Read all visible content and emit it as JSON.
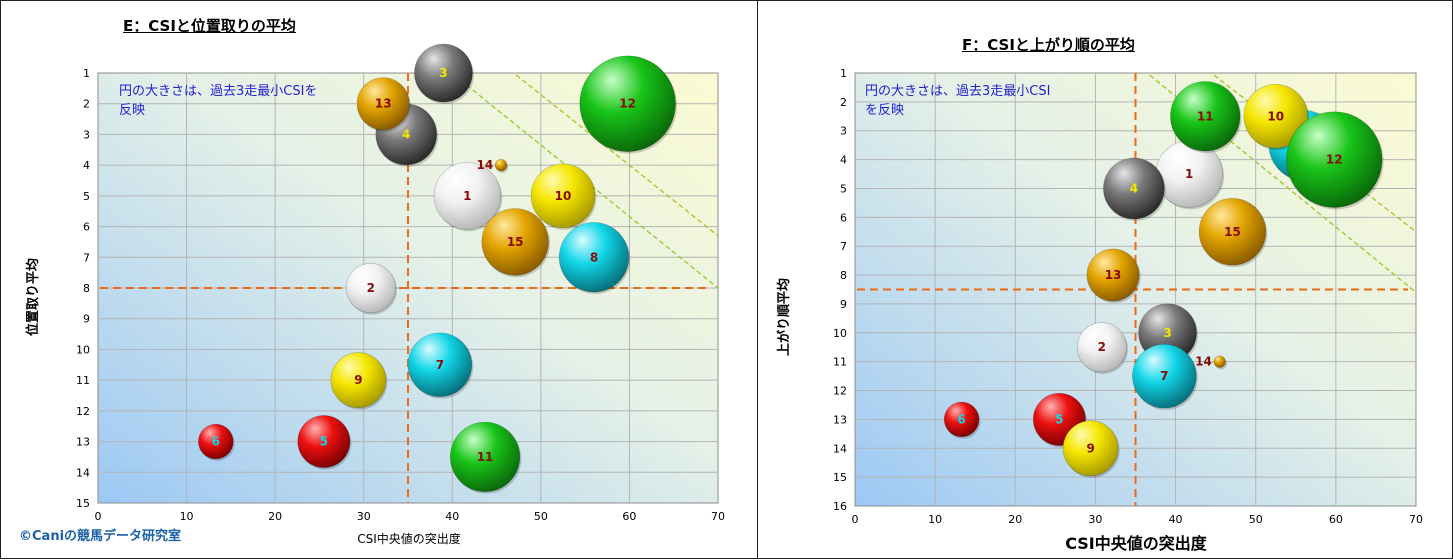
{
  "credit": "©Caniの競馬データ研究室",
  "colors": {
    "white": "#ffffff",
    "gray": "#6e6e6e",
    "yellow": "#f5e600",
    "gold": "#e3a400",
    "green": "#18c418",
    "cyan": "#12d6e8",
    "red": "#ee1010",
    "darkred": "#8a0a0a",
    "refline": "#ee6a16",
    "diagline": "#9ac828"
  },
  "chart_data": [
    {
      "type": "scatter",
      "title": "E：CSIと位置取りの平均",
      "xlabel": "CSI中央値の突出度",
      "ylabel": "位置取り平均",
      "annotation": "円の大きさは、過去3走最小CSIを反映",
      "xlim": [
        0,
        70
      ],
      "ylim": [
        1,
        15
      ],
      "y_inverted": true,
      "x_ticks": [
        0,
        10,
        20,
        30,
        40,
        50,
        60,
        70
      ],
      "y_ticks": [
        1,
        2,
        3,
        4,
        5,
        6,
        7,
        8,
        9,
        10,
        11,
        12,
        13,
        14,
        15
      ],
      "grid": true,
      "ref_lines": {
        "x": 35,
        "y": 8
      },
      "points": [
        {
          "label": "1",
          "x": 41.7,
          "y": 5.0,
          "size": 2.3,
          "color": "white",
          "label_color": "darkred"
        },
        {
          "label": "2",
          "x": 30.8,
          "y": 8.0,
          "size": 1.7,
          "color": "white",
          "label_color": "darkred"
        },
        {
          "label": "3",
          "x": 39.0,
          "y": 1.0,
          "size": 2.0,
          "color": "gray",
          "label_color": "yellow"
        },
        {
          "label": "4",
          "x": 34.8,
          "y": 3.0,
          "size": 2.1,
          "color": "gray",
          "label_color": "yellow"
        },
        {
          "label": "5",
          "x": 25.5,
          "y": 13.0,
          "size": 1.8,
          "color": "red",
          "label_color": "cyan"
        },
        {
          "label": "6",
          "x": 13.3,
          "y": 13.0,
          "size": 1.2,
          "color": "red",
          "label_color": "cyan"
        },
        {
          "label": "7",
          "x": 38.6,
          "y": 10.5,
          "size": 2.2,
          "color": "cyan",
          "label_color": "darkred"
        },
        {
          "label": "8",
          "x": 56.0,
          "y": 7.0,
          "size": 2.4,
          "color": "cyan",
          "label_color": "darkred"
        },
        {
          "label": "9",
          "x": 29.4,
          "y": 11.0,
          "size": 1.9,
          "color": "yellow",
          "label_color": "darkred"
        },
        {
          "label": "10",
          "x": 52.5,
          "y": 5.0,
          "size": 2.2,
          "color": "yellow",
          "label_color": "darkred"
        },
        {
          "label": "11",
          "x": 43.7,
          "y": 13.5,
          "size": 2.4,
          "color": "green",
          "label_color": "darkred"
        },
        {
          "label": "12",
          "x": 59.8,
          "y": 2.0,
          "size": 3.3,
          "color": "green",
          "label_color": "darkred"
        },
        {
          "label": "13",
          "x": 32.2,
          "y": 2.0,
          "size": 1.8,
          "color": "gold",
          "label_color": "darkred"
        },
        {
          "label": "14",
          "x": 45.5,
          "y": 4.0,
          "size": 0.4,
          "color": "gold",
          "label_color": "darkred"
        },
        {
          "label": "15",
          "x": 47.1,
          "y": 6.5,
          "size": 2.3,
          "color": "gold",
          "label_color": "darkred"
        }
      ]
    },
    {
      "type": "scatter",
      "title": "F：CSIと上がり順の平均",
      "xlabel": "CSI中央値の突出度",
      "ylabel": "上がり順平均",
      "annotation": "円の大きさは、過去3走最小CSIを反映",
      "xlim": [
        0,
        70
      ],
      "ylim": [
        1,
        16
      ],
      "y_inverted": true,
      "x_ticks": [
        0,
        10,
        20,
        30,
        40,
        50,
        60,
        70
      ],
      "y_ticks": [
        1,
        2,
        3,
        4,
        5,
        6,
        7,
        8,
        9,
        10,
        11,
        12,
        13,
        14,
        15,
        16
      ],
      "grid": true,
      "ref_lines": {
        "x": 35,
        "y": 8.5
      },
      "points": [
        {
          "label": "1",
          "x": 41.7,
          "y": 4.5,
          "size": 2.3,
          "color": "white",
          "label_color": "darkred"
        },
        {
          "label": "2",
          "x": 30.8,
          "y": 10.5,
          "size": 1.7,
          "color": "white",
          "label_color": "darkred"
        },
        {
          "label": "3",
          "x": 39.0,
          "y": 10.0,
          "size": 2.0,
          "color": "gray",
          "label_color": "yellow"
        },
        {
          "label": "4",
          "x": 34.8,
          "y": 5.0,
          "size": 2.1,
          "color": "gray",
          "label_color": "yellow"
        },
        {
          "label": "5",
          "x": 25.5,
          "y": 13.0,
          "size": 1.8,
          "color": "red",
          "label_color": "cyan"
        },
        {
          "label": "6",
          "x": 13.3,
          "y": 13.0,
          "size": 1.2,
          "color": "red",
          "label_color": "cyan"
        },
        {
          "label": "7",
          "x": 38.6,
          "y": 11.5,
          "size": 2.2,
          "color": "cyan",
          "label_color": "darkred"
        },
        {
          "label": "8",
          "x": 56.0,
          "y": 3.5,
          "size": 2.4,
          "color": "cyan",
          "label_color": "darkred"
        },
        {
          "label": "9",
          "x": 29.4,
          "y": 14.0,
          "size": 1.9,
          "color": "yellow",
          "label_color": "darkred"
        },
        {
          "label": "10",
          "x": 52.5,
          "y": 2.5,
          "size": 2.2,
          "color": "yellow",
          "label_color": "darkred"
        },
        {
          "label": "11",
          "x": 43.7,
          "y": 2.5,
          "size": 2.4,
          "color": "green",
          "label_color": "darkred"
        },
        {
          "label": "12",
          "x": 59.8,
          "y": 4.0,
          "size": 3.3,
          "color": "green",
          "label_color": "darkred"
        },
        {
          "label": "13",
          "x": 32.2,
          "y": 8.0,
          "size": 1.8,
          "color": "gold",
          "label_color": "darkred"
        },
        {
          "label": "14",
          "x": 45.5,
          "y": 11.0,
          "size": 0.4,
          "color": "gold",
          "label_color": "darkred"
        },
        {
          "label": "15",
          "x": 47.1,
          "y": 6.5,
          "size": 2.3,
          "color": "gold",
          "label_color": "darkred"
        }
      ]
    }
  ]
}
